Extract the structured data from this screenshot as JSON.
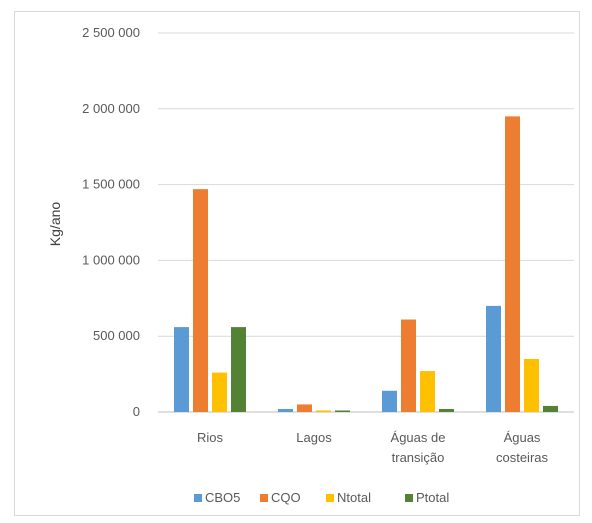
{
  "chart_data": {
    "type": "bar",
    "title": "",
    "xlabel": "",
    "ylabel": "Kg/ano",
    "categories": [
      [
        "Rios"
      ],
      [
        "Lagos"
      ],
      [
        "Águas de",
        "transição"
      ],
      [
        "Águas",
        "costeiras"
      ]
    ],
    "ylim": [
      0,
      2500000
    ],
    "yticks": [
      "0",
      "500 000",
      "1 000 000",
      "1 500 000",
      "2 000 000",
      "2 500 000"
    ],
    "ytick_values": [
      0,
      500000,
      1000000,
      1500000,
      2000000,
      2500000
    ],
    "grid": true,
    "legend_position": "bottom",
    "series": [
      {
        "name": "CBO5",
        "color": "#5b9bd5",
        "values": [
          560000,
          20000,
          140000,
          700000
        ]
      },
      {
        "name": "CQO",
        "color": "#ed7d31",
        "values": [
          1470000,
          50000,
          610000,
          1950000
        ]
      },
      {
        "name": "Ntotal",
        "color": "#ffc000",
        "values": [
          260000,
          10000,
          270000,
          350000
        ]
      },
      {
        "name": "Ptotal",
        "color": "#548235",
        "values": [
          560000,
          10000,
          20000,
          40000
        ]
      }
    ]
  }
}
